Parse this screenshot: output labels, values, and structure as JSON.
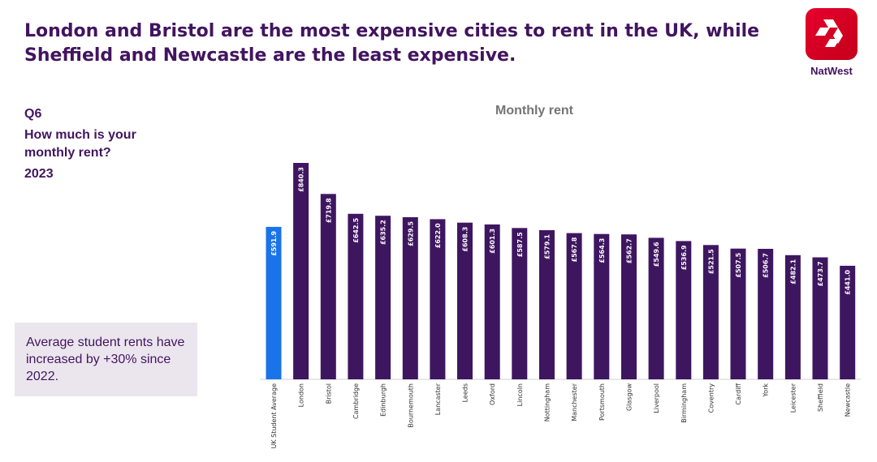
{
  "headline": "London and Bristol are the most expensive cities to rent in the UK, while Sheffield and Newcastle are the least expensive.",
  "brand": {
    "name": "NatWest",
    "logo_icon": "natwest-logo-icon",
    "color": "#e00000"
  },
  "question": {
    "code": "Q6",
    "text": "How much is your monthly rent?",
    "year": "2023"
  },
  "callout": {
    "text": "Average student rents have increased by +30% since 2022."
  },
  "colors": {
    "average_bar": "#1a73e8",
    "city_bar": "#3e1660",
    "title_text": "#42145f"
  },
  "chart_data": {
    "type": "bar",
    "title": "Monthly rent",
    "xlabel": "",
    "ylabel": "",
    "ylim": [
      0,
      840.3
    ],
    "categories": [
      "UK Student Average",
      "London",
      "Bristol",
      "Cambridge",
      "Edinburgh",
      "Bournemouth",
      "Lancaster",
      "Leeds",
      "Oxford",
      "Lincoln",
      "Nottingham",
      "Manchester",
      "Portsmouth",
      "Glasgow",
      "Liverpool",
      "Birmingham",
      "Coventry",
      "Cardiff",
      "York",
      "Leicester",
      "Sheffield",
      "Newcastle"
    ],
    "values": [
      591.9,
      840.3,
      719.8,
      642.5,
      635.2,
      629.5,
      622.0,
      608.3,
      601.3,
      587.5,
      579.1,
      567.8,
      564.3,
      562.7,
      549.6,
      536.9,
      521.5,
      507.5,
      506.7,
      482.1,
      473.7,
      441.0
    ],
    "labels": [
      "£591.9",
      "£840.3",
      "£719.8",
      "£642.5",
      "£635.2",
      "£629.5",
      "£622.0",
      "£608.3",
      "£601.3",
      "£587.5",
      "£579.1",
      "£567.8",
      "£564.3",
      "£562.7",
      "£549.6",
      "£536.9",
      "£521.5",
      "£507.5",
      "£506.7",
      "£482.1",
      "£473.7",
      "£441.0"
    ],
    "highlight_index": 0,
    "grid": false,
    "legend": "none"
  }
}
